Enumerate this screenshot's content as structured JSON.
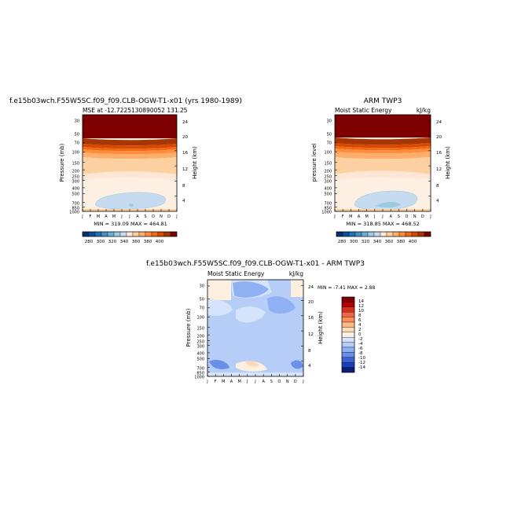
{
  "panels": [
    {
      "id": "model",
      "suptitle": "f.e15b03wch.F55W5SC.f09_f09.CLB-OGW-T1-x01 (yrs 1980-1989)",
      "left_label": "MSE at -12.7225130890052 131.25",
      "right_label": "",
      "ylabel_left": "Pressure (mb)",
      "ylabel_right": "Height (km)",
      "min_max": "MIN = 319.09  MAX = 464.81"
    },
    {
      "id": "obs",
      "suptitle": "ARM TWP3",
      "left_label": "Moist Static Energy",
      "right_label": "kJ/kg",
      "ylabel_left": "pressure level",
      "ylabel_right": "Height (km)",
      "min_max": "MIN = 318.85  MAX = 468.52"
    },
    {
      "id": "diff",
      "suptitle": "f.e15b03wch.F55W5SC.f09_f09.CLB-OGW-T1-x01 - ARM TWP3",
      "left_label": "Moist Static Energy",
      "right_label": "kJ/kg",
      "ylabel_left": "Pressure (mb)",
      "ylabel_right": "Height (km)",
      "min_max": "MIN =   -7.41  MAX =    2.88"
    }
  ],
  "chart_data": [
    {
      "type": "heatmap",
      "id": "model",
      "title": "MSE at -12.7225130890052 131.25",
      "x_ticks": [
        "J",
        "F",
        "M",
        "A",
        "M",
        "J",
        "J",
        "A",
        "S",
        "O",
        "N",
        "D",
        "J"
      ],
      "pressure_ticks": [
        "30",
        "50",
        "70",
        "100",
        "150",
        "200",
        "250",
        "300",
        "400",
        "500",
        "700",
        "850",
        "1000"
      ],
      "pressure_values": [
        30,
        50,
        70,
        100,
        150,
        200,
        250,
        300,
        400,
        500,
        700,
        850,
        1000
      ],
      "height_ticks": [
        "4",
        "8",
        "12",
        "16",
        "20",
        "24"
      ],
      "height_values": [
        4,
        8,
        12,
        16,
        20,
        24
      ],
      "colorbar_labels": [
        "280",
        "300",
        "320",
        "340",
        "360",
        "380",
        "400"
      ],
      "contour_levels": [
        270,
        280,
        290,
        300,
        310,
        320,
        330,
        340,
        350,
        360,
        370,
        380,
        390,
        400,
        410
      ],
      "min": 319.09,
      "max": 464.81
    },
    {
      "type": "heatmap",
      "id": "obs",
      "title": "Moist Static Energy",
      "x_ticks": [
        "J",
        "F",
        "M",
        "A",
        "M",
        "J",
        "J",
        "A",
        "S",
        "O",
        "N",
        "D",
        "J"
      ],
      "pressure_ticks": [
        "30",
        "50",
        "70",
        "100",
        "150",
        "200",
        "250",
        "300",
        "400",
        "500",
        "700",
        "850",
        "1000"
      ],
      "pressure_values": [
        30,
        50,
        70,
        100,
        150,
        200,
        250,
        300,
        400,
        500,
        700,
        850,
        1000
      ],
      "height_ticks": [
        "4",
        "8",
        "12",
        "16",
        "20",
        "24"
      ],
      "height_values": [
        4,
        8,
        12,
        16,
        20,
        24
      ],
      "colorbar_labels": [
        "280",
        "300",
        "320",
        "340",
        "360",
        "380",
        "400"
      ],
      "contour_levels": [
        270,
        280,
        290,
        300,
        310,
        320,
        330,
        340,
        350,
        360,
        370,
        380,
        390,
        400,
        410
      ],
      "min": 318.85,
      "max": 468.52
    },
    {
      "type": "heatmap",
      "id": "diff",
      "title": "Moist Static Energy",
      "x_ticks": [
        "J",
        "F",
        "M",
        "A",
        "M",
        "J",
        "J",
        "A",
        "S",
        "O",
        "N",
        "D",
        "J"
      ],
      "pressure_ticks": [
        "30",
        "50",
        "70",
        "100",
        "150",
        "200",
        "250",
        "300",
        "400",
        "500",
        "700",
        "850",
        "1000"
      ],
      "pressure_values": [
        30,
        50,
        70,
        100,
        150,
        200,
        250,
        300,
        400,
        500,
        700,
        850,
        1000
      ],
      "height_ticks": [
        "4",
        "8",
        "12",
        "16",
        "20",
        "24"
      ],
      "height_values": [
        4,
        8,
        12,
        16,
        20,
        24
      ],
      "colorbar_labels": [
        "14",
        "12",
        "10",
        "8",
        "6",
        "4",
        "2",
        "0",
        "-2",
        "-4",
        "-6",
        "-8",
        "-10",
        "-12",
        "-14"
      ],
      "contour_levels": [
        -14,
        -12,
        -10,
        -8,
        -6,
        -4,
        -2,
        0,
        2,
        4,
        6,
        8,
        10,
        12,
        14
      ],
      "min": -7.41,
      "max": 2.88
    }
  ],
  "colors": {
    "mse_scale": [
      "#08306b",
      "#08519c",
      "#2171b5",
      "#4292c6",
      "#6baed6",
      "#9ecae1",
      "#c6dbef",
      "#fde7d4",
      "#fdd0a2",
      "#fdae6b",
      "#fd8d3c",
      "#f16913",
      "#d94801",
      "#a63603",
      "#7f0000"
    ],
    "diff_scale": [
      "#7f0000",
      "#b30000",
      "#d7301f",
      "#ef6548",
      "#fc8d59",
      "#fdbb84",
      "#fdd9b5",
      "#fef0e1",
      "#d6e4fb",
      "#b5cdf7",
      "#8fb0f2",
      "#6a8fe8",
      "#3e62d6",
      "#1c3fb5",
      "#0a1f7a"
    ]
  }
}
